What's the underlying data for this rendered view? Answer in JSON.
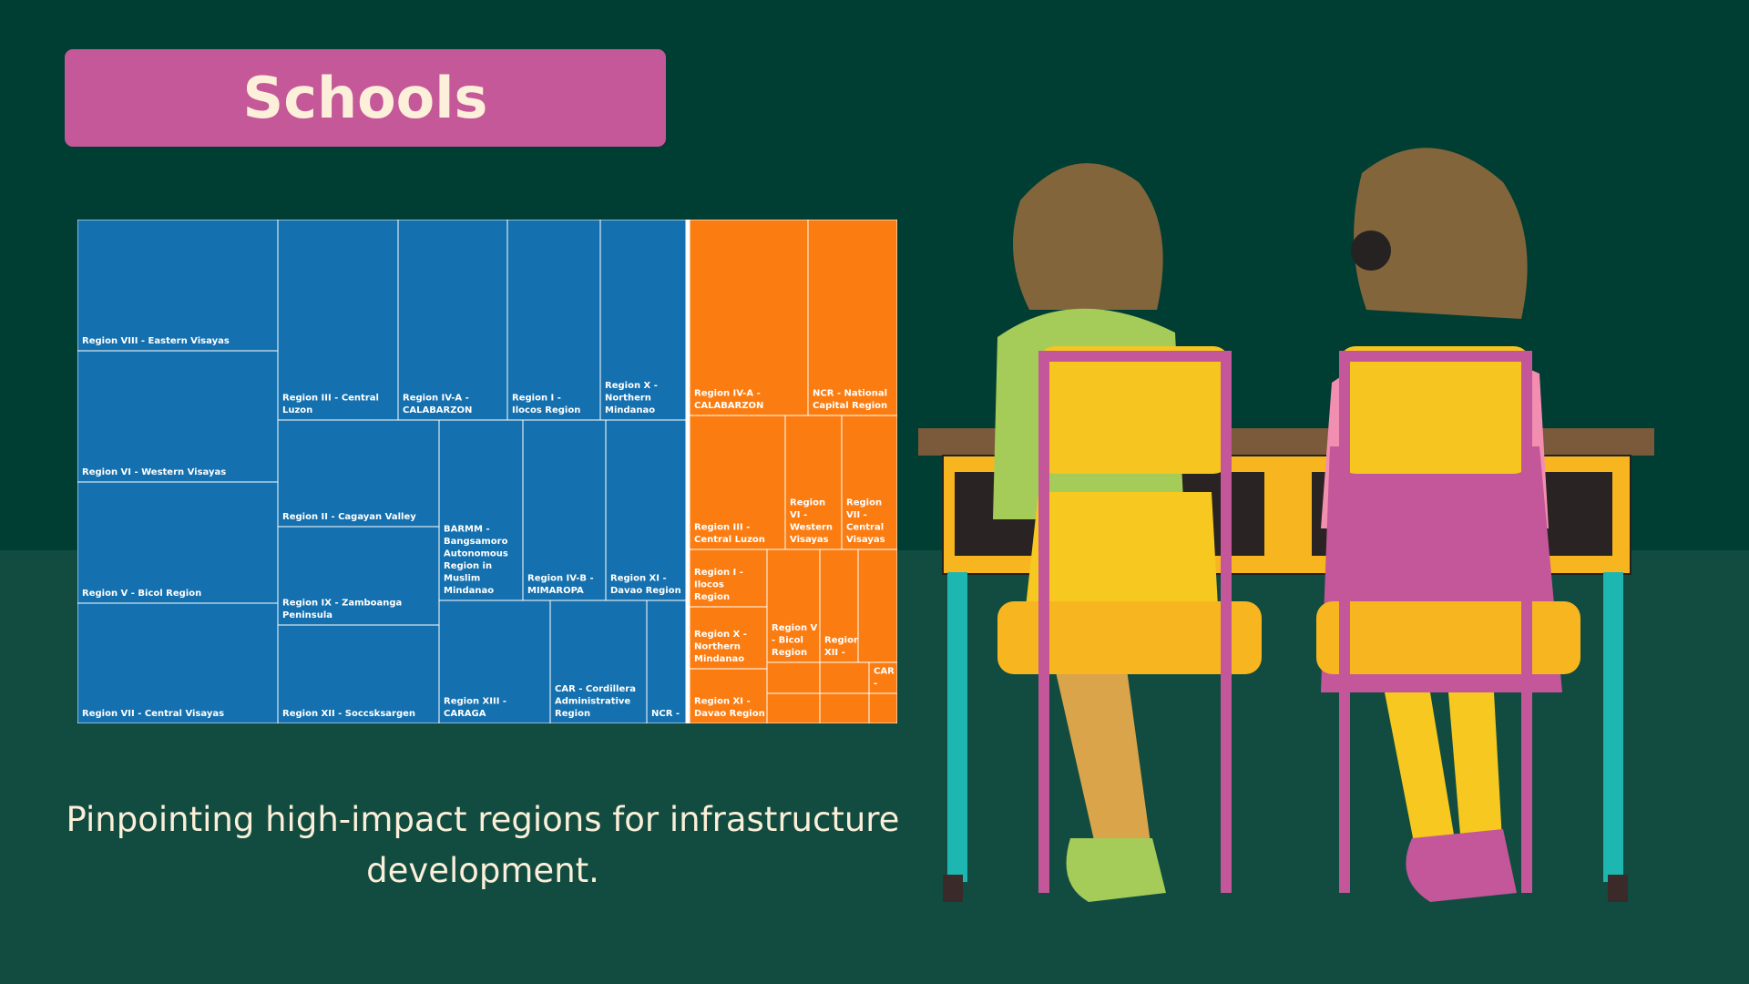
{
  "title": "Schools",
  "subtitle": "Pinpointing high-impact regions for infrastructure development.",
  "colors": {
    "blue": "#1470ae",
    "orange": "#fb7d12",
    "title_bg": "#c45898"
  },
  "chart_data": {
    "type": "treemap",
    "groups": [
      {
        "color": "#1470ae",
        "items": [
          {
            "label": "Region VIII - Eastern Visayas",
            "value": 6
          },
          {
            "label": "Region VI - Western Visayas",
            "value": 6
          },
          {
            "label": "Region V - Bicol Region",
            "value": 6
          },
          {
            "label": "Region VII - Central Visayas",
            "value": 6
          },
          {
            "label": "Region III - Central Luzon",
            "value": 3.9
          },
          {
            "label": "Region IV-A - CALABARZON",
            "value": 3.6
          },
          {
            "label": "Region I - Ilocos Region",
            "value": 3.1
          },
          {
            "label": "Region X - Northern Mindanao",
            "value": 2.8
          },
          {
            "label": "Region II - Cagayan Valley",
            "value": 2.5
          },
          {
            "label": "Region IX - Zamboanga Peninsula",
            "value": 2.3
          },
          {
            "label": "Region XII - Soccsksargen",
            "value": 2.3
          },
          {
            "label": "BARMM - Bangsamoro Autonomous Region in Muslim Mindanao",
            "value": 2.6
          },
          {
            "label": "Region IV-B - MIMAROPA",
            "value": 2.6
          },
          {
            "label": "Region XI - Davao Region",
            "value": 2.6
          },
          {
            "label": "Region XIII - CARAGA",
            "value": 1.5
          },
          {
            "label": "CAR - Cordillera Administrative Region",
            "value": 1.3
          },
          {
            "label": "NCR -",
            "value": 0.6
          }
        ]
      },
      {
        "color": "#fb7d12",
        "items": [
          {
            "label": "Region IV-A - CALABARZON",
            "value": 3
          },
          {
            "label": "NCR - National Capital Region",
            "value": 2.3
          },
          {
            "label": "Region III - Central Luzon",
            "value": 1.7
          },
          {
            "label": "Region VI - Western Visayas",
            "value": 1
          },
          {
            "label": "Region VII - Central Visayas",
            "value": 1
          },
          {
            "label": "Region I - Ilocos Region",
            "value": 0.9
          },
          {
            "label": "Region V - Bicol Region",
            "value": 0.7
          },
          {
            "label": "Region XII -",
            "value": 0.5
          },
          {
            "label": "",
            "value": 0.5
          },
          {
            "label": "Region X - Northern Mindanao",
            "value": 0.8
          },
          {
            "label": "Region XI - Davao Region",
            "value": 0.8
          },
          {
            "label": "CAR -",
            "value": 0.4
          },
          {
            "label": "",
            "value": 0.3
          },
          {
            "label": "",
            "value": 0.3
          },
          {
            "label": "",
            "value": 0.3
          },
          {
            "label": "",
            "value": 0.3
          },
          {
            "label": "",
            "value": 0.3
          }
        ]
      }
    ]
  }
}
